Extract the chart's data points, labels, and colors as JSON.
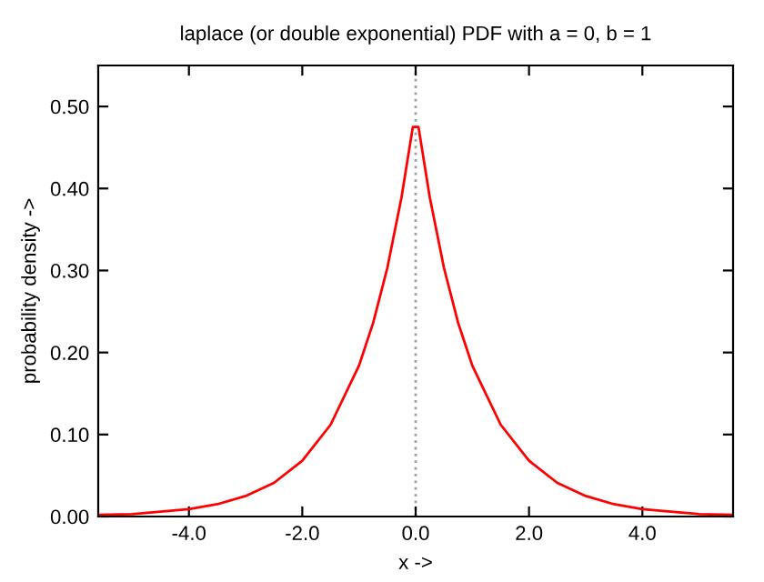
{
  "chart_data": {
    "type": "line",
    "title": "laplace (or double exponential) PDF with a = 0, b = 1",
    "xlabel": "x ->",
    "ylabel": "probability density ->",
    "x": [
      -5.6,
      -5,
      -4.5,
      -4,
      -3.5,
      -3,
      -2.5,
      -2,
      -1.5,
      -1,
      -0.75,
      -0.5,
      -0.25,
      -0.05,
      0.05,
      0.25,
      0.5,
      0.75,
      1,
      1.5,
      2,
      2.5,
      3,
      3.5,
      4,
      4.5,
      5,
      5.6
    ],
    "series": [
      {
        "color": "#ff0000",
        "values": [
          0.002,
          0.003,
          0.006,
          0.009,
          0.015,
          0.025,
          0.041,
          0.068,
          0.112,
          0.184,
          0.236,
          0.303,
          0.389,
          0.475,
          0.475,
          0.389,
          0.303,
          0.236,
          0.184,
          0.112,
          0.068,
          0.041,
          0.025,
          0.015,
          0.009,
          0.006,
          0.003,
          0.002
        ]
      }
    ],
    "xlim": [
      -5.6,
      5.6
    ],
    "ylim": [
      0,
      0.55
    ],
    "xticks": [
      {
        "value": -4,
        "label": "-4.0"
      },
      {
        "value": -2,
        "label": "-2.0"
      },
      {
        "value": 0,
        "label": "0.0"
      },
      {
        "value": 2,
        "label": "2.0"
      },
      {
        "value": 4,
        "label": "4.0"
      }
    ],
    "yticks": [
      {
        "value": 0,
        "label": "0.00"
      },
      {
        "value": 0.1,
        "label": "0.10"
      },
      {
        "value": 0.2,
        "label": "0.20"
      },
      {
        "value": 0.3,
        "label": "0.30"
      },
      {
        "value": 0.4,
        "label": "0.40"
      },
      {
        "value": 0.5,
        "label": "0.50"
      }
    ],
    "ref_lines": [
      {
        "axis": "x",
        "value": 0,
        "color": "#a0a0a0",
        "line_style": "dotted"
      }
    ],
    "grid": false,
    "legend": false,
    "marker": "none",
    "line_style": "solid"
  }
}
